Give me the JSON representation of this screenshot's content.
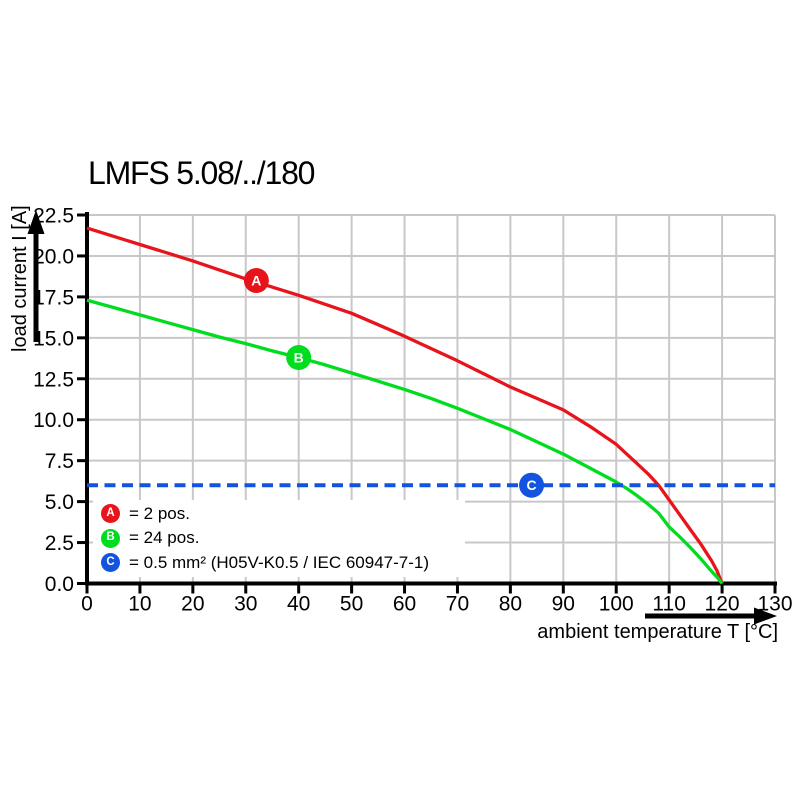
{
  "title": "LMFS 5.08/../180",
  "x_axis": {
    "label": "ambient temperature T [°C]"
  },
  "y_axis": {
    "label": "load current I [A]"
  },
  "legend": {
    "items": [
      {
        "key": "A",
        "color": "#e8141c",
        "text": "= 2 pos."
      },
      {
        "key": "B",
        "color": "#00dc1e",
        "text": "= 24 pos."
      },
      {
        "key": "C",
        "color": "#1253e0",
        "text": "= 0.5 mm² (H05V-K0.5 / IEC 60947-7-1)"
      }
    ]
  },
  "chart_data": {
    "type": "line",
    "title": "LMFS 5.08/../180",
    "xlabel": "ambient temperature T [°C]",
    "ylabel": "load current I [A]",
    "xlim": [
      0,
      130
    ],
    "ylim": [
      0,
      22.5
    ],
    "x_ticks": [
      0,
      10,
      20,
      30,
      40,
      50,
      60,
      70,
      80,
      90,
      100,
      110,
      120,
      130
    ],
    "y_ticks": [
      0,
      2.5,
      5,
      7.5,
      10,
      12.5,
      15,
      17.5,
      20,
      22.5
    ],
    "grid": true,
    "grid_color": "#c8c8c8",
    "axis_color": "#000000",
    "legend_position": "lower-left-inside",
    "series": [
      {
        "id": "A",
        "name": "2 pos.",
        "color": "#e8141c",
        "style": "solid",
        "points": [
          [
            0,
            21.7
          ],
          [
            5,
            21.2
          ],
          [
            10,
            20.7
          ],
          [
            15,
            20.2
          ],
          [
            20,
            19.7
          ],
          [
            25,
            19.15
          ],
          [
            30,
            18.6
          ],
          [
            35,
            18.1
          ],
          [
            40,
            17.6
          ],
          [
            45,
            17.05
          ],
          [
            50,
            16.5
          ],
          [
            55,
            15.8
          ],
          [
            60,
            15.1
          ],
          [
            65,
            14.35
          ],
          [
            70,
            13.6
          ],
          [
            75,
            12.8
          ],
          [
            80,
            12.0
          ],
          [
            85,
            11.3
          ],
          [
            90,
            10.6
          ],
          [
            95,
            9.6
          ],
          [
            100,
            8.5
          ],
          [
            104,
            7.3
          ],
          [
            106,
            6.7
          ],
          [
            108,
            6.0
          ],
          [
            110,
            5.1
          ],
          [
            112,
            4.2
          ],
          [
            114,
            3.3
          ],
          [
            116,
            2.4
          ],
          [
            118,
            1.4
          ],
          [
            119,
            0.8
          ],
          [
            120,
            0
          ]
        ]
      },
      {
        "id": "B",
        "name": "24 pos.",
        "color": "#00dc1e",
        "style": "solid",
        "points": [
          [
            0,
            17.3
          ],
          [
            5,
            16.85
          ],
          [
            10,
            16.4
          ],
          [
            15,
            15.95
          ],
          [
            20,
            15.5
          ],
          [
            25,
            15.05
          ],
          [
            30,
            14.65
          ],
          [
            35,
            14.2
          ],
          [
            40,
            13.8
          ],
          [
            45,
            13.35
          ],
          [
            50,
            12.85
          ],
          [
            55,
            12.35
          ],
          [
            60,
            11.85
          ],
          [
            65,
            11.3
          ],
          [
            70,
            10.7
          ],
          [
            75,
            10.05
          ],
          [
            80,
            9.4
          ],
          [
            85,
            8.65
          ],
          [
            90,
            7.9
          ],
          [
            95,
            7.05
          ],
          [
            100,
            6.2
          ],
          [
            102,
            5.8
          ],
          [
            104,
            5.35
          ],
          [
            106,
            4.85
          ],
          [
            108,
            4.3
          ],
          [
            110,
            3.45
          ],
          [
            112,
            2.85
          ],
          [
            114,
            2.2
          ],
          [
            116,
            1.5
          ],
          [
            118,
            0.75
          ],
          [
            119,
            0.4
          ],
          [
            120,
            0
          ]
        ]
      },
      {
        "id": "C",
        "name": "0.5 mm² (H05V-K0.5 / IEC 60947-7-1)",
        "color": "#1253e0",
        "style": "dashed",
        "points": [
          [
            0,
            6
          ],
          [
            130,
            6
          ]
        ]
      }
    ],
    "markers": [
      {
        "label": "A",
        "x": 32,
        "y": 18.5,
        "color": "#e8141c"
      },
      {
        "label": "B",
        "x": 40,
        "y": 13.8,
        "color": "#00dc1e"
      },
      {
        "label": "C",
        "x": 84,
        "y": 6.0,
        "color": "#1253e0"
      }
    ]
  }
}
